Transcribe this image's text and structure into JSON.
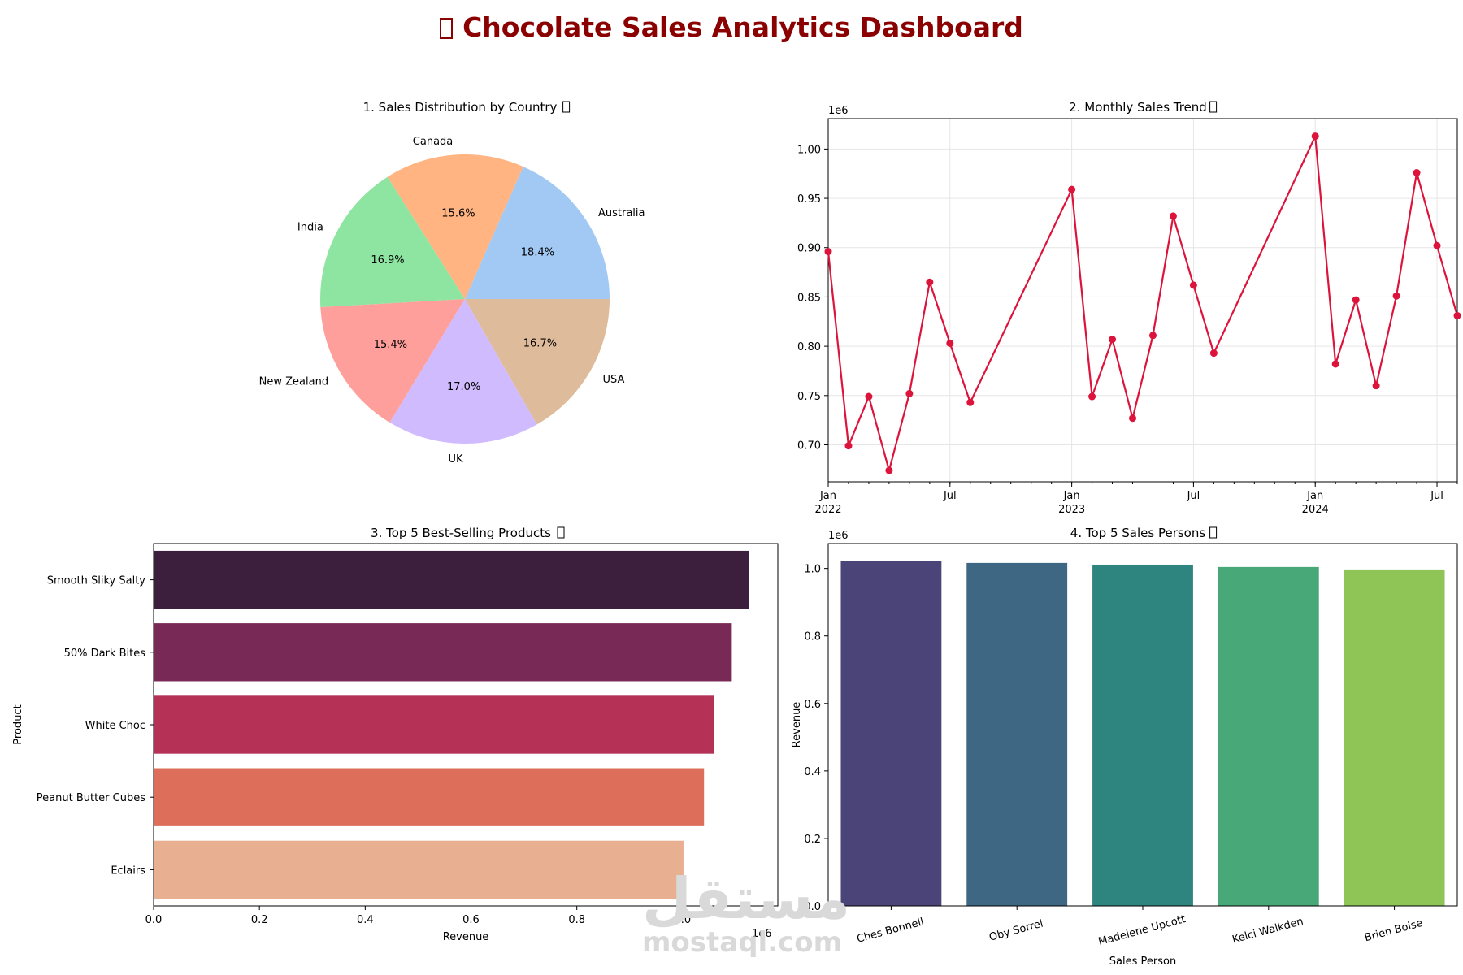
{
  "title": "🍫 Chocolate Sales Analytics Dashboard",
  "title_color": "#8b0000",
  "watermark": {
    "arabic": "مستقل",
    "latin": "mostaql.com"
  },
  "chart_data": [
    {
      "type": "pie",
      "title": "1. Sales Distribution by Country 🌍",
      "labels": [
        "Australia",
        "Canada",
        "India",
        "New Zealand",
        "UK",
        "USA"
      ],
      "values": [
        18.4,
        15.6,
        16.9,
        15.4,
        17.0,
        16.7
      ],
      "value_labels": [
        "18.4%",
        "15.6%",
        "16.9%",
        "15.4%",
        "17.0%",
        "16.7%"
      ],
      "colors": [
        "#a1c9f4",
        "#ffb482",
        "#8de5a1",
        "#ff9f9b",
        "#d0bbff",
        "#debb9b"
      ]
    },
    {
      "type": "line",
      "title": "2. Monthly Sales Trend 📈",
      "y_scale_label": "1e6",
      "color": "#dc143c",
      "x": [
        "2022-01",
        "2022-02",
        "2022-03",
        "2022-04",
        "2022-05",
        "2022-06",
        "2022-07",
        "2022-08",
        "2023-01",
        "2023-02",
        "2023-03",
        "2023-04",
        "2023-05",
        "2023-06",
        "2023-07",
        "2023-08",
        "2024-01",
        "2024-02",
        "2024-03",
        "2024-04",
        "2024-05",
        "2024-06",
        "2024-07",
        "2024-08"
      ],
      "values": [
        0.896,
        0.699,
        0.749,
        0.674,
        0.752,
        0.865,
        0.803,
        0.743,
        0.959,
        0.749,
        0.807,
        0.727,
        0.811,
        0.932,
        0.862,
        0.793,
        1.013,
        0.782,
        0.847,
        0.76,
        0.851,
        0.976,
        0.902,
        0.831
      ],
      "ylim": [
        0.6625,
        1.0308
      ],
      "yticks": [
        0.7,
        0.75,
        0.8,
        0.85,
        0.9,
        0.95,
        1.0
      ],
      "ytick_labels": [
        "0.70",
        "0.75",
        "0.80",
        "0.85",
        "0.90",
        "0.95",
        "1.00"
      ],
      "xlim_months": [
        0,
        31
      ],
      "x_ticks": [
        {
          "m": 0,
          "label": "Jan",
          "year": "2022"
        },
        {
          "m": 6,
          "label": "Jul",
          "year": ""
        },
        {
          "m": 12,
          "label": "Jan",
          "year": "2023"
        },
        {
          "m": 18,
          "label": "Jul",
          "year": ""
        },
        {
          "m": 24,
          "label": "Jan",
          "year": "2024"
        },
        {
          "m": 30,
          "label": "Jul",
          "year": ""
        }
      ],
      "grid": true
    },
    {
      "type": "bar-horizontal",
      "title": "3. Top 5 Best-Selling Products 🍫",
      "xlabel": "Revenue",
      "ylabel": "Product",
      "x_scale_label": "1e6",
      "categories": [
        "Smooth Sliky Salty",
        "50% Dark Bites",
        "White Choc",
        "Peanut Butter Cubes",
        "Eclairs"
      ],
      "values": [
        1.1255,
        1.093,
        1.059,
        1.0405,
        1.0017
      ],
      "colors": [
        "#3b1f3c",
        "#782956",
        "#b53156",
        "#dc6e5a",
        "#e9af91"
      ],
      "xlim": [
        0,
        1.18
      ],
      "xticks": [
        0.0,
        0.2,
        0.4,
        0.6,
        0.8,
        1.0
      ],
      "xtick_labels": [
        "0.0",
        "0.2",
        "0.4",
        "0.6",
        "0.8",
        "1.0"
      ]
    },
    {
      "type": "bar",
      "title": "4. Top 5 Sales Persons 👤",
      "xlabel": "Sales Person",
      "ylabel": "Revenue",
      "y_scale_label": "1e6",
      "categories": [
        "Ches Bonnell",
        "Oby Sorrel",
        "Madelene Upcott",
        "Kelci Walkden",
        "Brien Boise"
      ],
      "values": [
        1.0227,
        1.0163,
        1.0113,
        1.0043,
        0.997
      ],
      "colors": [
        "#4b4478",
        "#3e6783",
        "#2e8580",
        "#48a877",
        "#8fc456"
      ],
      "ylim": [
        0,
        1.0738
      ],
      "yticks": [
        0.0,
        0.2,
        0.4,
        0.6,
        0.8,
        1.0
      ],
      "ytick_labels": [
        "0.0",
        "0.2",
        "0.4",
        "0.6",
        "0.8",
        "1.0"
      ]
    }
  ]
}
